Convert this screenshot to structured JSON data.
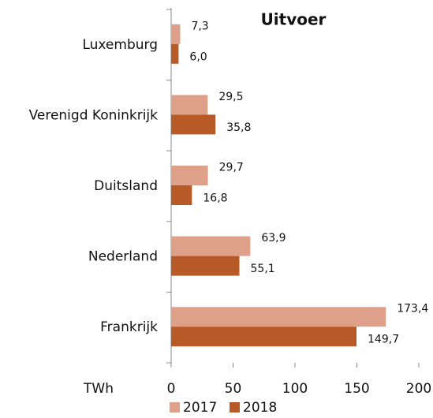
{
  "chart_data": {
    "type": "bar",
    "orientation": "horizontal",
    "title": "Uitvoer",
    "xlabel": "TWh",
    "categories": [
      "Luxemburg",
      "Verenigd Koninkrijk",
      "Duitsland",
      "Nederland",
      "Frankrijk"
    ],
    "series": [
      {
        "name": "2017",
        "color": "#dfa08a",
        "values": [
          7.3,
          29.5,
          29.7,
          63.9,
          173.4
        ],
        "value_labels": [
          "7,3",
          "29,5",
          "29,7",
          "63,9",
          "173,4"
        ]
      },
      {
        "name": "2018",
        "color": "#b85a27",
        "values": [
          6.0,
          35.8,
          16.8,
          55.1,
          149.7
        ],
        "value_labels": [
          "6,0",
          "35,8",
          "16,8",
          "55,1",
          "149,7"
        ]
      }
    ],
    "xlim": [
      0,
      200
    ],
    "xticks": [
      0,
      50,
      100,
      150,
      200
    ]
  }
}
